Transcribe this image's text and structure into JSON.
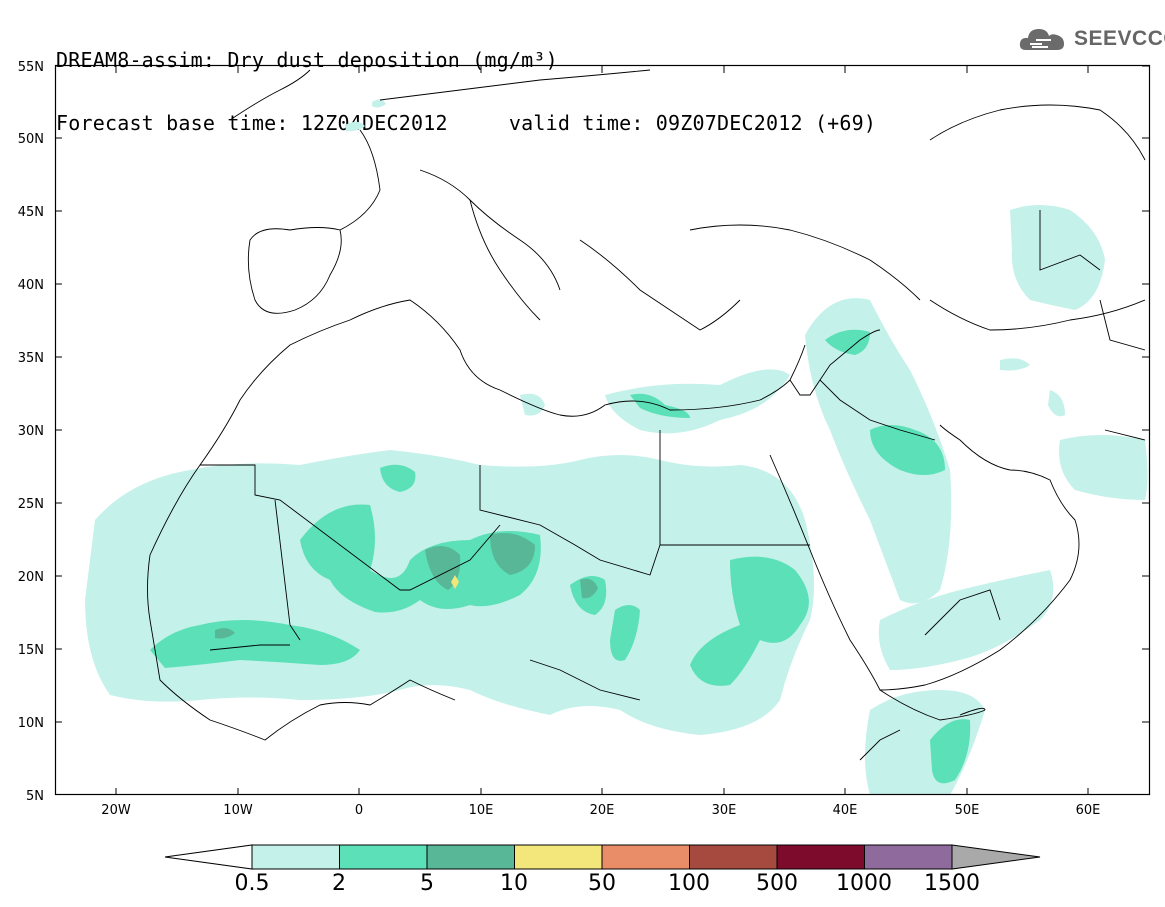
{
  "header": {
    "title_line1": "DREAM8-assim: Dry dust deposition (mg/m³)",
    "title_line2": "Forecast base time: 12Z04DEC2012     valid time: 09Z07DEC2012 (+69)"
  },
  "logo": {
    "text": "SEEVCCC",
    "icon": "cloud-logo-icon"
  },
  "map": {
    "lon_labels": [
      "20W",
      "10W",
      "0",
      "10E",
      "20E",
      "30E",
      "40E",
      "50E",
      "60E"
    ],
    "lat_labels": [
      "55N",
      "50N",
      "45N",
      "40N",
      "35N",
      "30N",
      "25N",
      "20N",
      "15N",
      "10N",
      "5N"
    ],
    "lon_range": [
      -25,
      65
    ],
    "lat_range": [
      5,
      55
    ]
  },
  "colorbar": {
    "labels": [
      "0.5",
      "2",
      "5",
      "10",
      "50",
      "100",
      "500",
      "1000",
      "1500"
    ],
    "colors": [
      "#c4f1ea",
      "#5ce0b8",
      "#57b797",
      "#f3e67a",
      "#e98d68",
      "#a64a3f",
      "#7d0b2c",
      "#8f6a9d",
      "#a9a9a9"
    ],
    "left_triangle_color": "#ffffff",
    "right_triangle_color": "#a9a9a9"
  }
}
